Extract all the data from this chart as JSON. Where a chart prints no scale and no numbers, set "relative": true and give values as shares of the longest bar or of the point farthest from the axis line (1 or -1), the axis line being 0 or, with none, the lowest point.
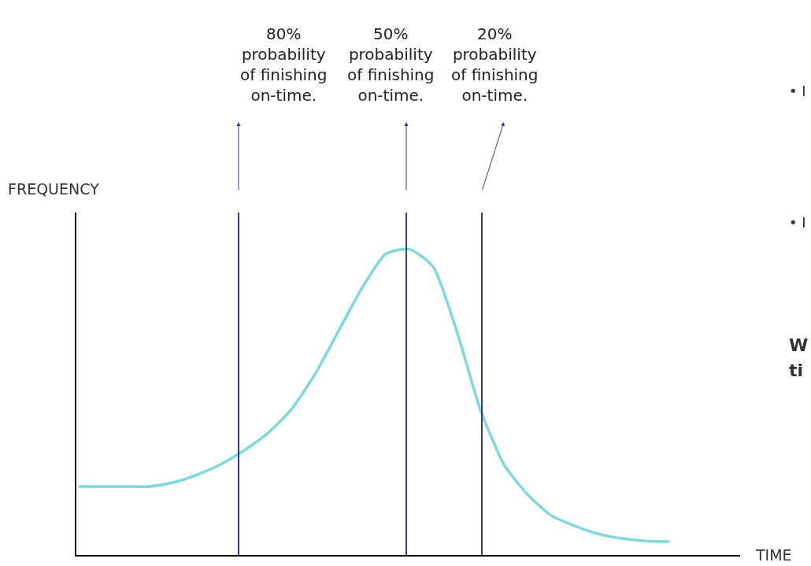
{
  "chart_data": {
    "type": "line",
    "relative": true,
    "xlabel": "TIME",
    "ylabel": "FREQUENCY",
    "categories": [
      null,
      null,
      null,
      null,
      null,
      null,
      null,
      null,
      null,
      null,
      null,
      null,
      null,
      null,
      null,
      null,
      null,
      null,
      null,
      null,
      null,
      null,
      null,
      null,
      null,
      null
    ],
    "series": [
      {
        "color": "#7dd9dc",
        "values": [
          0.224,
          0.224,
          0.224,
          0.224,
          0.237,
          0.262,
          0.296,
          0.342,
          0.398,
          0.476,
          0.591,
          0.733,
          0.874,
          0.985,
          1.0,
          0.943,
          0.733,
          0.476,
          0.296,
          0.198,
          0.129,
          0.095,
          0.069,
          0.054,
          0.046,
          0.044
        ]
      }
    ],
    "annotations": [
      "80%\nprobability\nof finishing\non-time.",
      "50%\nprobability\nof finishing\non-time.",
      "20%\nprobability\nof finishing\non-time.",
      "• I",
      "• I",
      "W",
      "ti"
    ],
    "legend": false,
    "marker": "none",
    "line_style": "solid"
  }
}
